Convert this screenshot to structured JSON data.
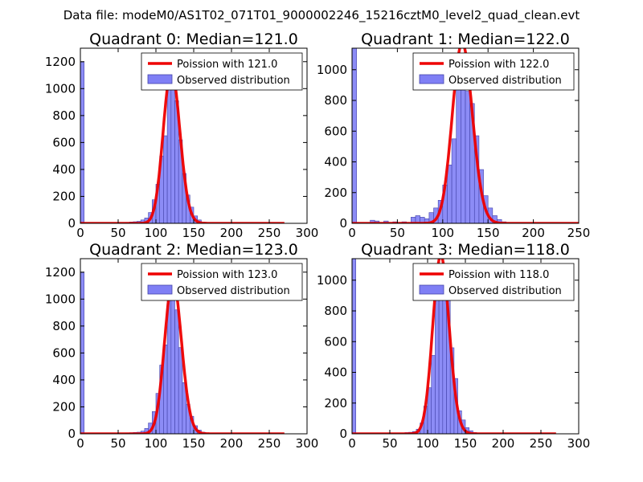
{
  "suptitle": "Data file: modeM0/AS1T02_071T01_9000002246_15216cztM0_level2_quad_clean.evt",
  "colors": {
    "bar_fill": "#7f7ff5",
    "bar_edge": "#4444aa",
    "curve": "#ee0000",
    "axis": "#000000"
  },
  "chart_data": [
    {
      "type": "bar",
      "title": "Quadrant 0: Median=121.0",
      "xlim": [
        0,
        300
      ],
      "ylim": [
        0,
        1300
      ],
      "xticks": [
        0,
        50,
        100,
        150,
        200,
        250,
        300
      ],
      "yticks": [
        0,
        200,
        400,
        600,
        800,
        1000,
        1200
      ],
      "legend": {
        "placement": "top-right",
        "curve_label": "Poission with 121.0",
        "bars_label": "Observed distribution"
      },
      "bin_width": 5,
      "bins": [
        [
          0,
          1195
        ],
        [
          60,
          5
        ],
        [
          65,
          10
        ],
        [
          70,
          12
        ],
        [
          75,
          15
        ],
        [
          80,
          25
        ],
        [
          85,
          40
        ],
        [
          90,
          80
        ],
        [
          95,
          175
        ],
        [
          100,
          290
        ],
        [
          105,
          500
        ],
        [
          110,
          650
        ],
        [
          115,
          1000
        ],
        [
          120,
          1150
        ],
        [
          125,
          910
        ],
        [
          130,
          620
        ],
        [
          135,
          370
        ],
        [
          140,
          210
        ],
        [
          145,
          120
        ],
        [
          150,
          55
        ],
        [
          155,
          25
        ],
        [
          160,
          10
        ]
      ],
      "poisson_mean": 121
    },
    {
      "type": "bar",
      "title": "Quadrant 1: Median=122.0",
      "xlim": [
        0,
        250
      ],
      "ylim": [
        0,
        1140
      ],
      "xticks": [
        0,
        50,
        100,
        150,
        200,
        250
      ],
      "yticks": [
        0,
        200,
        400,
        600,
        800,
        1000
      ],
      "legend": {
        "placement": "top-right",
        "curve_label": "Poission with 122.0",
        "bars_label": "Observed distribution"
      },
      "bin_width": 5,
      "bins": [
        [
          0,
          1140
        ],
        [
          20,
          20
        ],
        [
          25,
          15
        ],
        [
          35,
          15
        ],
        [
          45,
          10
        ],
        [
          55,
          10
        ],
        [
          65,
          40
        ],
        [
          70,
          50
        ],
        [
          75,
          40
        ],
        [
          80,
          30
        ],
        [
          85,
          70
        ],
        [
          90,
          100
        ],
        [
          95,
          150
        ],
        [
          100,
          250
        ],
        [
          105,
          380
        ],
        [
          110,
          550
        ],
        [
          115,
          880
        ],
        [
          120,
          970
        ],
        [
          125,
          860
        ],
        [
          130,
          780
        ],
        [
          135,
          570
        ],
        [
          140,
          350
        ],
        [
          145,
          180
        ],
        [
          150,
          100
        ],
        [
          155,
          50
        ],
        [
          160,
          25
        ],
        [
          165,
          10
        ]
      ],
      "poisson_mean": 122
    },
    {
      "type": "bar",
      "title": "Quadrant 2: Median=123.0",
      "xlim": [
        0,
        300
      ],
      "ylim": [
        0,
        1300
      ],
      "xticks": [
        0,
        50,
        100,
        150,
        200,
        250,
        300
      ],
      "yticks": [
        0,
        200,
        400,
        600,
        800,
        1000,
        1200
      ],
      "legend": {
        "placement": "top-right",
        "curve_label": "Poission with 123.0",
        "bars_label": "Observed distribution"
      },
      "bin_width": 5,
      "bins": [
        [
          0,
          1195
        ],
        [
          60,
          5
        ],
        [
          65,
          8
        ],
        [
          70,
          10
        ],
        [
          75,
          12
        ],
        [
          80,
          20
        ],
        [
          85,
          40
        ],
        [
          90,
          80
        ],
        [
          95,
          165
        ],
        [
          100,
          300
        ],
        [
          105,
          510
        ],
        [
          110,
          660
        ],
        [
          115,
          1000
        ],
        [
          120,
          1150
        ],
        [
          125,
          920
        ],
        [
          130,
          640
        ],
        [
          135,
          380
        ],
        [
          140,
          220
        ],
        [
          145,
          130
        ],
        [
          150,
          60
        ],
        [
          155,
          28
        ],
        [
          160,
          12
        ]
      ],
      "poisson_mean": 123
    },
    {
      "type": "bar",
      "title": "Quadrant 3: Median=118.0",
      "xlim": [
        0,
        300
      ],
      "ylim": [
        0,
        1140
      ],
      "xticks": [
        0,
        50,
        100,
        150,
        200,
        250,
        300
      ],
      "yticks": [
        0,
        200,
        400,
        600,
        800,
        1000
      ],
      "legend": {
        "placement": "top-right",
        "curve_label": "Poission with 118.0",
        "bars_label": "Observed distribution"
      },
      "bin_width": 5,
      "bins": [
        [
          0,
          1140
        ],
        [
          70,
          8
        ],
        [
          75,
          10
        ],
        [
          80,
          15
        ],
        [
          85,
          30
        ],
        [
          90,
          70
        ],
        [
          95,
          180
        ],
        [
          100,
          300
        ],
        [
          105,
          510
        ],
        [
          110,
          880
        ],
        [
          115,
          1060
        ],
        [
          120,
          1090
        ],
        [
          125,
          940
        ],
        [
          130,
          560
        ],
        [
          135,
          360
        ],
        [
          140,
          150
        ],
        [
          145,
          90
        ],
        [
          150,
          40
        ],
        [
          155,
          20
        ],
        [
          160,
          8
        ]
      ],
      "poisson_mean": 118
    }
  ]
}
